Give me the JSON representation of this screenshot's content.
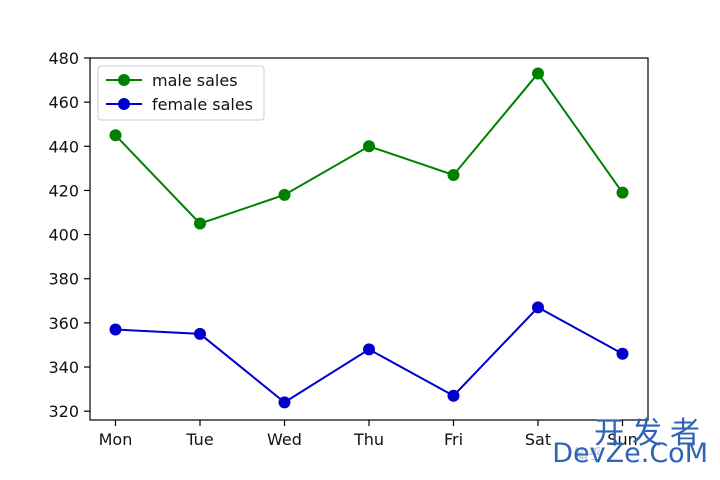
{
  "chart_data": {
    "type": "line",
    "categories": [
      "Mon",
      "Tue",
      "Wed",
      "Thu",
      "Fri",
      "Sat",
      "Sun"
    ],
    "series": [
      {
        "name": "male sales",
        "color": "#008000",
        "values": [
          445,
          405,
          418,
          440,
          427,
          473,
          419
        ]
      },
      {
        "name": "female sales",
        "color": "#0000cc",
        "values": [
          357,
          355,
          324,
          348,
          327,
          367,
          346
        ]
      }
    ],
    "yticks": [
      320,
      340,
      360,
      380,
      400,
      420,
      440,
      460,
      480
    ],
    "ylim": [
      316,
      480
    ],
    "legend_position": "upper-left",
    "grid": false,
    "title": "",
    "xlabel": "",
    "ylabel": ""
  },
  "watermark": {
    "top_text": "开发者",
    "bottom_text": "DevZe.CoM",
    "small_text": "知乎"
  }
}
